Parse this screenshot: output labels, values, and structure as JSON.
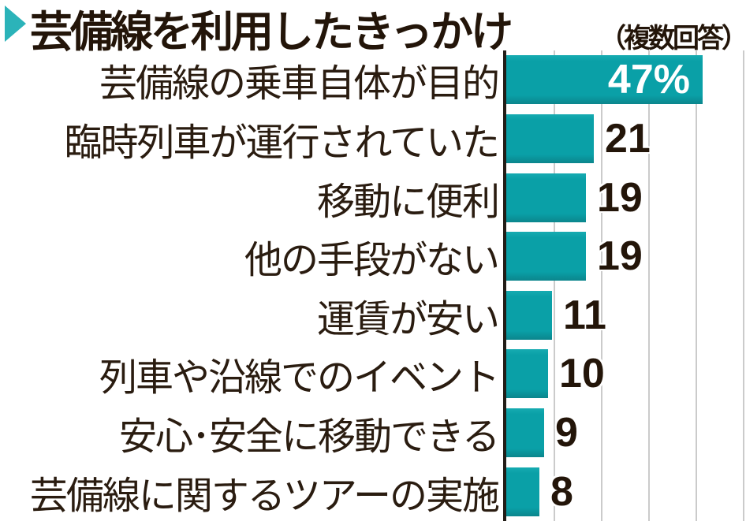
{
  "header": {
    "title": "芸備線を利用したきっかけ",
    "subtitle": "（複数回答）",
    "marker_icon": "right-triangle-marker",
    "marker_color": "#2bb3b9",
    "ink_color": "#231509"
  },
  "chart_data": {
    "type": "bar",
    "orientation": "horizontal",
    "title": "芸備線を利用したきっかけ（複数回答）",
    "categories": [
      "芸備線の乗車自体が目的",
      "臨時列車が運行されていた",
      "移動に便利",
      "他の手段がない",
      "運賃が安い",
      "列車や沿線でのイベント",
      "安心･安全に移動できる",
      "芸備線に関するツアーの実施"
    ],
    "values": [
      47,
      21,
      19,
      19,
      11,
      10,
      9,
      8
    ],
    "value_labels": [
      "47%",
      "21",
      "19",
      "19",
      "11",
      "10",
      "9",
      "8"
    ],
    "unit": "%",
    "xlim": [
      0,
      57
    ],
    "grid": true,
    "n_gridlines": 5,
    "first_label_inside": true,
    "bar_color": "#0aa0a7",
    "axis_color": "#221d17",
    "gridline_color": "#cbcbcb",
    "value_text_color": "#231509",
    "inside_value_text_color": "#ffffff",
    "legend": null
  }
}
